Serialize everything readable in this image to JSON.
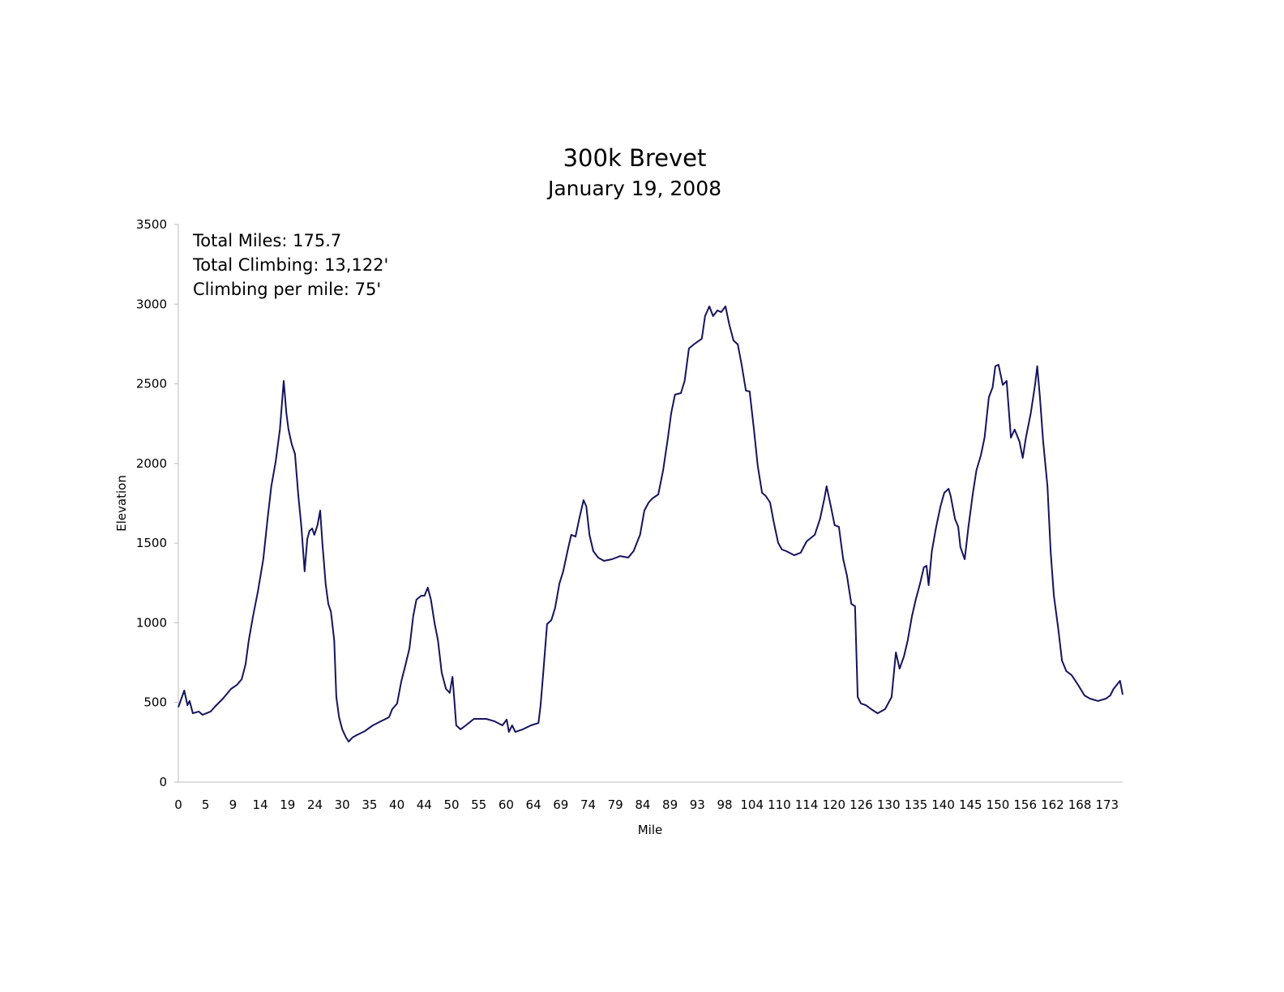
{
  "chart_data": {
    "type": "line",
    "title": "300k Brevet",
    "subtitle": "January 19, 2008",
    "xlabel": "Mile",
    "ylabel": "Elevation",
    "ylim": [
      0,
      3500
    ],
    "xlim": [
      0,
      175.7
    ],
    "yticks": [
      "0",
      "500",
      "1000",
      "1500",
      "2000",
      "2500",
      "3000",
      "3500"
    ],
    "xtick_labels": [
      "0",
      "5",
      "9",
      "14",
      "19",
      "24",
      "30",
      "35",
      "40",
      "44",
      "50",
      "55",
      "60",
      "64",
      "69",
      "74",
      "79",
      "84",
      "89",
      "93",
      "98",
      "104",
      "110",
      "114",
      "120",
      "126",
      "130",
      "135",
      "140",
      "145",
      "150",
      "156",
      "162",
      "168",
      "173"
    ],
    "grid": false,
    "legend": "none",
    "line_color": "#14145e",
    "annotations": [
      "Total Miles: 175.7",
      "Total Climbing: 13,122'",
      "Climbing per mile: 75'"
    ],
    "series": [
      {
        "name": "Elevation",
        "x": [
          0,
          1.1,
          1.7,
          2.1,
          2.7,
          3.8,
          4.5,
          6.0,
          6.8,
          8.3,
          9.8,
          10.9,
          11.8,
          12.5,
          13.1,
          13.9,
          14.8,
          15.8,
          16.6,
          17.3,
          18.1,
          18.9,
          19.6,
          20.1,
          20.5,
          21.1,
          21.7,
          22.3,
          22.9,
          23.5,
          24.0,
          24.4,
          24.9,
          25.3,
          25.9,
          26.4,
          26.8,
          27.4,
          27.9,
          28.4,
          29.0,
          29.4,
          29.9,
          30.5,
          31.2,
          31.7,
          32.4,
          33.2,
          34.7,
          36.2,
          37.7,
          39.2,
          39.8,
          40.7,
          41.5,
          42.2,
          43.0,
          43.7,
          44.3,
          45.2,
          45.8,
          46.4,
          47.0,
          47.7,
          48.3,
          49.0,
          49.8,
          50.5,
          51.0,
          51.3,
          51.7,
          52.5,
          53.5,
          55.0,
          57.3,
          58.8,
          60.3,
          61.1,
          61.5,
          62.1,
          62.7,
          64.1,
          65.6,
          67.0,
          67.4,
          67.9,
          68.6,
          69.4,
          70.1,
          70.9,
          71.6,
          72.4,
          73.1,
          73.9,
          74.6,
          75.4,
          75.9,
          76.5,
          77.2,
          78.1,
          79.2,
          80.7,
          82.2,
          83.7,
          84.7,
          85.9,
          86.7,
          87.5,
          88.2,
          89.3,
          90.2,
          91.1,
          91.7,
          92.4,
          93.5,
          94.2,
          95.0,
          95.9,
          96.5,
          97.4,
          98.0,
          98.8,
          99.5,
          100.3,
          101.0,
          101.8,
          102.5,
          103.3,
          104.1,
          104.8,
          105.6,
          106.3,
          107.1,
          107.8,
          108.6,
          109.3,
          110.1,
          110.8,
          111.6,
          112.3,
          113.1,
          114.6,
          115.8,
          116.9,
          118.4,
          119.4,
          120.2,
          120.6,
          121.4,
          122.1,
          122.9,
          123.7,
          124.4,
          125.2,
          125.9,
          126.4,
          127.0,
          127.9,
          128.9,
          130.1,
          131.5,
          132.7,
          133.5,
          134.2,
          135.0,
          135.7,
          136.5,
          137.2,
          138.0,
          138.7,
          139.2,
          139.6,
          140.2,
          141.0,
          141.8,
          142.5,
          143.3,
          143.7,
          144.5,
          145.1,
          145.5,
          146.3,
          147.0,
          147.8,
          148.5,
          149.3,
          150.0,
          150.8,
          151.5,
          152.0,
          152.6,
          153.4,
          154.1,
          154.9,
          155.6,
          156.5,
          157.1,
          157.7,
          158.6,
          159.4,
          159.8,
          160.3,
          160.9,
          161.7,
          162.3,
          162.9,
          163.7,
          164.4,
          165.2,
          166.2,
          167.4,
          168.6,
          169.6,
          171.1,
          172.6,
          173.4,
          174.0,
          174.6,
          175.2,
          175.7
        ],
        "y": [
          470,
          575,
          483,
          509,
          432,
          443,
          422,
          443,
          473,
          524,
          585,
          610,
          646,
          738,
          890,
          1043,
          1195,
          1399,
          1653,
          1857,
          2009,
          2213,
          2518,
          2315,
          2213,
          2121,
          2060,
          1806,
          1602,
          1323,
          1526,
          1577,
          1592,
          1552,
          1613,
          1704,
          1501,
          1246,
          1119,
          1068,
          890,
          534,
          407,
          331,
          280,
          254,
          280,
          295,
          320,
          356,
          382,
          407,
          458,
          493,
          636,
          727,
          839,
          1043,
          1145,
          1170,
          1170,
          1221,
          1145,
          992,
          890,
          687,
          585,
          560,
          661,
          534,
          356,
          331,
          356,
          397,
          397,
          382,
          356,
          392,
          315,
          356,
          315,
          331,
          356,
          371,
          483,
          687,
          992,
          1017,
          1094,
          1246,
          1323,
          1450,
          1552,
          1541,
          1653,
          1770,
          1730,
          1552,
          1450,
          1409,
          1389,
          1399,
          1419,
          1409,
          1450,
          1552,
          1704,
          1755,
          1780,
          1806,
          1958,
          2162,
          2315,
          2432,
          2442,
          2518,
          2722,
          2747,
          2762,
          2783,
          2925,
          2986,
          2925,
          2961,
          2950,
          2986,
          2874,
          2772,
          2747,
          2620,
          2457,
          2452,
          2213,
          1984,
          1816,
          1796,
          1755,
          1628,
          1501,
          1460,
          1450,
          1424,
          1440,
          1511,
          1552,
          1653,
          1780,
          1857,
          1730,
          1613,
          1602,
          1399,
          1297,
          1119,
          1104,
          534,
          493,
          483,
          458,
          432,
          458,
          534,
          814,
          712,
          788,
          890,
          1043,
          1145,
          1246,
          1348,
          1358,
          1236,
          1450,
          1602,
          1730,
          1816,
          1841,
          1796,
          1653,
          1602,
          1475,
          1399,
          1602,
          1806,
          1958,
          2050,
          2162,
          2416,
          2477,
          2610,
          2620,
          2493,
          2518,
          2162,
          2213,
          2137,
          2035,
          2162,
          2315,
          2493,
          2610,
          2416,
          2137,
          1857,
          1450,
          1170,
          967,
          763,
          697,
          671,
          610,
          544,
          524,
          509,
          524,
          544,
          585,
          610,
          636,
          549
        ]
      }
    ]
  }
}
